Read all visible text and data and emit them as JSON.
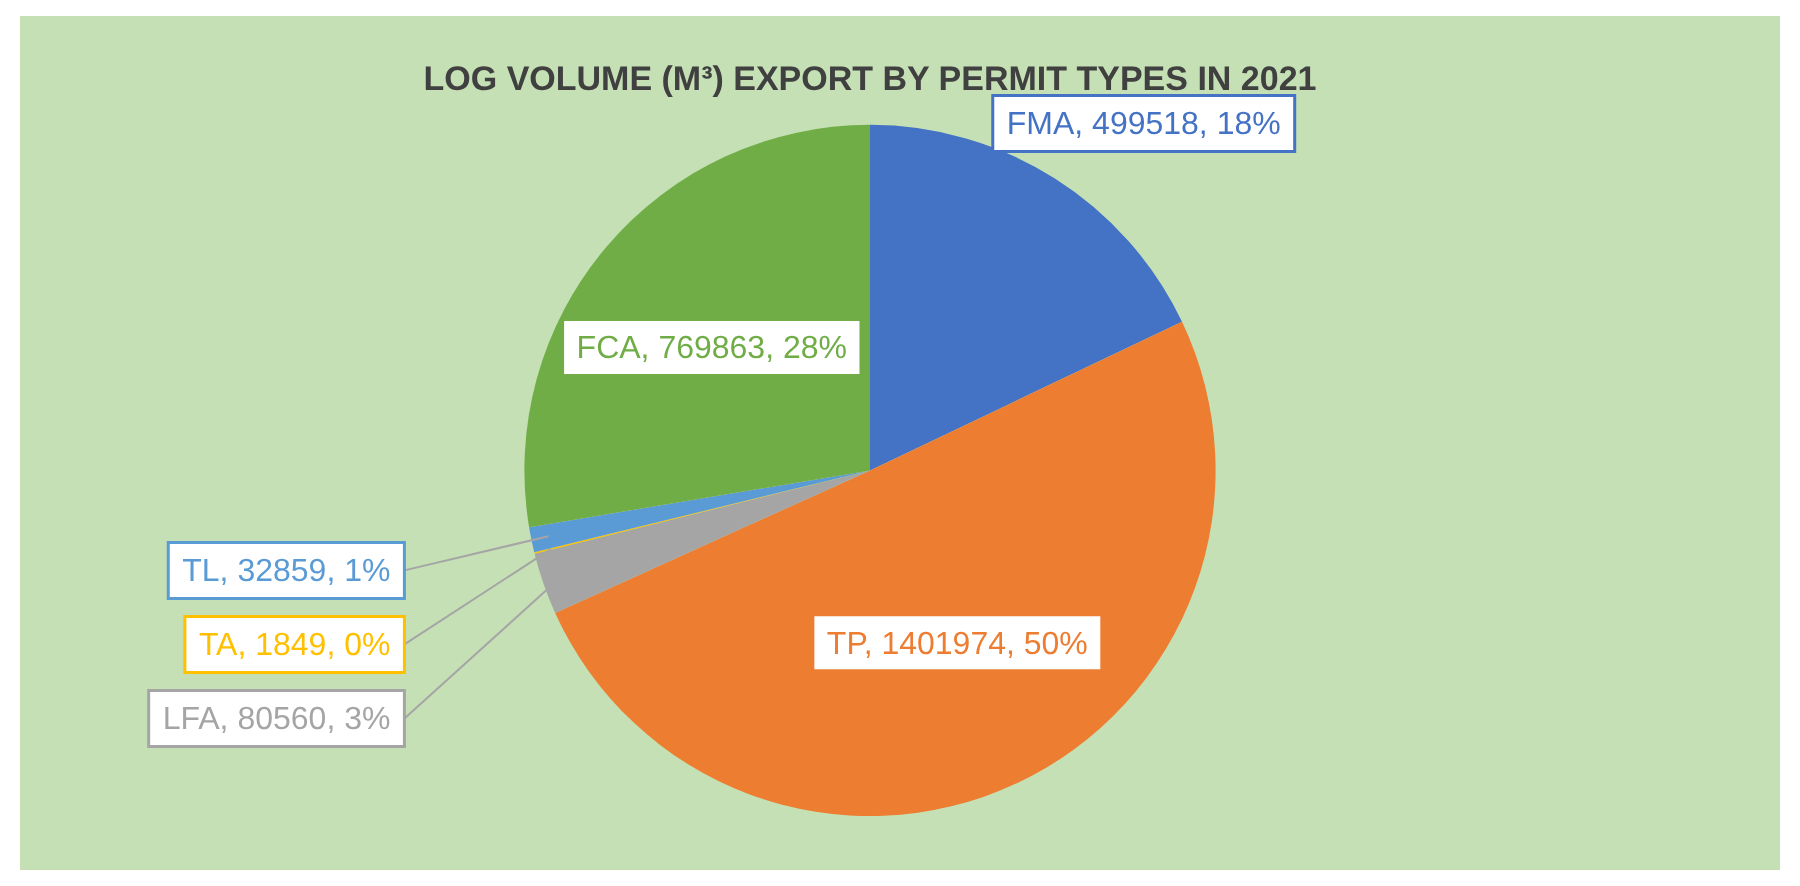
{
  "chart_data": {
    "type": "pie",
    "title": "LOG VOLUME (M³) EXPORT BY PERMIT TYPES IN 2021",
    "categories": [
      "FMA",
      "TP",
      "LFA",
      "TA",
      "TL",
      "FCA"
    ],
    "values": [
      499518,
      1401974,
      80560,
      1849,
      32859,
      769863
    ],
    "value_labels": [
      "499518, 18%",
      "1401974, 50%",
      "80560, 3%",
      "1849, 0%",
      "32859, 1%",
      "769863, 28%"
    ],
    "colors": [
      "#4472c4",
      "#ed7d31",
      "#a5a5a5",
      "#ffc000",
      "#5b9bd5",
      "#70ad47"
    ],
    "legend": false
  }
}
